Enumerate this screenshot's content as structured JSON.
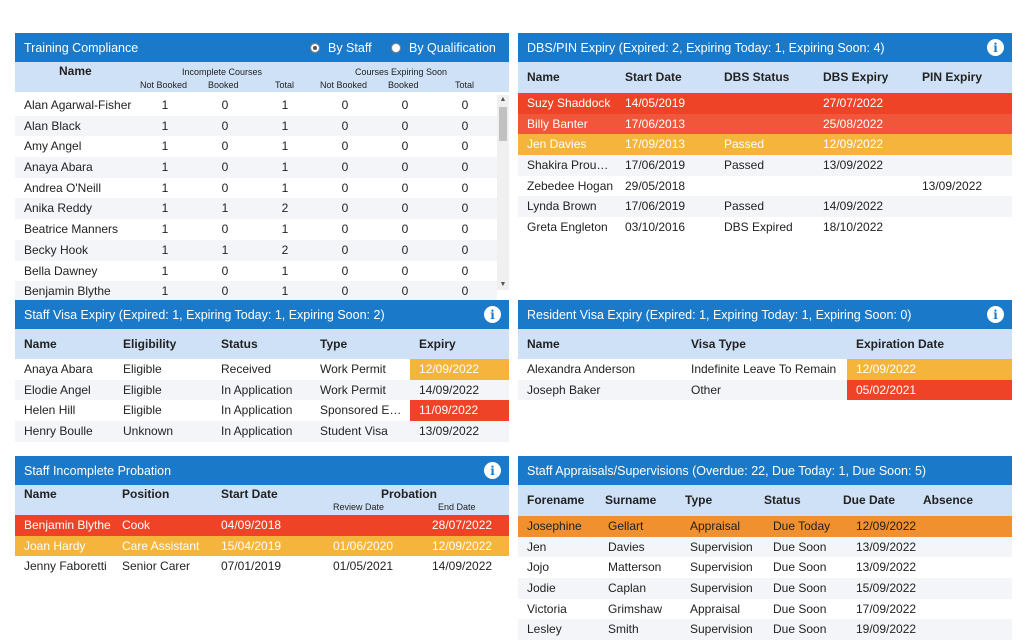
{
  "training": {
    "title": "Training Compliance",
    "radio1": "By Staff",
    "radio2": "By Qualification",
    "h_name": "Name",
    "h_incomplete": "Incomplete Courses",
    "h_expiring": "Courses Expiring Soon",
    "sub": [
      "Not Booked",
      "Booked",
      "Total",
      "Not Booked",
      "Booked",
      "Total"
    ],
    "rows": [
      [
        "Alan Agarwal-Fisher",
        "1",
        "0",
        "1",
        "0",
        "0",
        "0"
      ],
      [
        "Alan Black",
        "1",
        "0",
        "1",
        "0",
        "0",
        "0"
      ],
      [
        "Amy Angel",
        "1",
        "0",
        "1",
        "0",
        "0",
        "0"
      ],
      [
        "Anaya Abara",
        "1",
        "0",
        "1",
        "0",
        "0",
        "0"
      ],
      [
        "Andrea O'Neill",
        "1",
        "0",
        "1",
        "0",
        "0",
        "0"
      ],
      [
        "Anika Reddy",
        "1",
        "1",
        "2",
        "0",
        "0",
        "0"
      ],
      [
        "Beatrice Manners",
        "1",
        "0",
        "1",
        "0",
        "0",
        "0"
      ],
      [
        "Becky Hook",
        "1",
        "1",
        "2",
        "0",
        "0",
        "0"
      ],
      [
        "Bella Dawney",
        "1",
        "0",
        "1",
        "0",
        "0",
        "0"
      ],
      [
        "Benjamin Blythe",
        "1",
        "0",
        "1",
        "0",
        "0",
        "0"
      ]
    ]
  },
  "dbs": {
    "title": "DBS/PIN Expiry (Expired: 2, Expiring Today: 1, Expiring Soon: 4)",
    "cols": [
      "Name",
      "Start Date",
      "DBS Status",
      "DBS Expiry",
      "PIN Expiry"
    ],
    "rows": [
      [
        "Suzy Shaddock",
        "14/05/2019",
        "",
        "27/07/2022",
        ""
      ],
      [
        "Billy Banter",
        "17/06/2013",
        "",
        "25/08/2022",
        ""
      ],
      [
        "Jen Davies",
        "17/09/2013",
        "Passed",
        "12/09/2022",
        ""
      ],
      [
        "Shakira Prou…",
        "17/06/2019",
        "Passed",
        "13/09/2022",
        ""
      ],
      [
        "Zebedee Hogan",
        "29/05/2018",
        "",
        "",
        "13/09/2022"
      ],
      [
        "Lynda Brown",
        "17/06/2019",
        "Passed",
        "14/09/2022",
        ""
      ],
      [
        "Greta Engleton",
        "03/10/2016",
        "DBS Expired",
        "18/10/2022",
        ""
      ]
    ]
  },
  "visa": {
    "title": "Staff Visa Expiry (Expired: 1, Expiring Today: 1, Expiring Soon: 2)",
    "cols": [
      "Name",
      "Eligibility",
      "Status",
      "Type",
      "Expiry"
    ],
    "rows": [
      [
        "Anaya Abara",
        "Eligible",
        "Received",
        "Work Permit",
        "12/09/2022"
      ],
      [
        "Elodie Angel",
        "Eligible",
        "In Application",
        "Work Permit",
        "14/09/2022"
      ],
      [
        "Helen Hill",
        "Eligible",
        "In Application",
        "Sponsored E…",
        "11/09/2022"
      ],
      [
        "Henry Boulle",
        "Unknown",
        "In Application",
        "Student Visa",
        "13/09/2022"
      ]
    ]
  },
  "resident": {
    "title": "Resident Visa Expiry (Expired: 1, Expiring Today: 1, Expiring Soon: 0)",
    "cols": [
      "Name",
      "Visa Type",
      "Expiration Date"
    ],
    "rows": [
      [
        "Alexandra Anderson",
        "Indefinite Leave To Remain",
        "12/09/2022"
      ],
      [
        "Joseph Baker",
        "Other",
        "05/02/2021"
      ]
    ]
  },
  "probation": {
    "title": "Staff Incomplete Probation",
    "cols": [
      "Name",
      "Position",
      "Start Date",
      "Probation",
      "Review Date",
      "End Date"
    ],
    "rows": [
      [
        "Benjamin Blythe",
        "Cook",
        "04/09/2018",
        "",
        "28/07/2022"
      ],
      [
        "Joan Hardy",
        "Care Assistant",
        "15/04/2019",
        "01/06/2020",
        "12/09/2022"
      ],
      [
        "Jenny Faboretti",
        "Senior Carer",
        "07/01/2019",
        "01/05/2021",
        "14/09/2022"
      ]
    ]
  },
  "appraisals": {
    "title": "Staff Appraisals/Supervisions (Overdue: 22, Due Today: 1, Due Soon: 5)",
    "cols": [
      "Forename",
      "Surname",
      "Type",
      "Status",
      "Due Date",
      "Absence"
    ],
    "rows": [
      [
        "Josephine",
        "Gellart",
        "Appraisal",
        "Due Today",
        "12/09/2022"
      ],
      [
        "Jen",
        "Davies",
        "Supervision",
        "Due Soon",
        "13/09/2022"
      ],
      [
        "Jojo",
        "Matterson",
        "Supervision",
        "Due Soon",
        "13/09/2022"
      ],
      [
        "Jodie",
        "Caplan",
        "Supervision",
        "Due Soon",
        "15/09/2022"
      ],
      [
        "Victoria",
        "Grimshaw",
        "Appraisal",
        "Due Soon",
        "17/09/2022"
      ],
      [
        "Lesley",
        "Smith",
        "Supervision",
        "Due Soon",
        "19/09/2022"
      ]
    ]
  }
}
